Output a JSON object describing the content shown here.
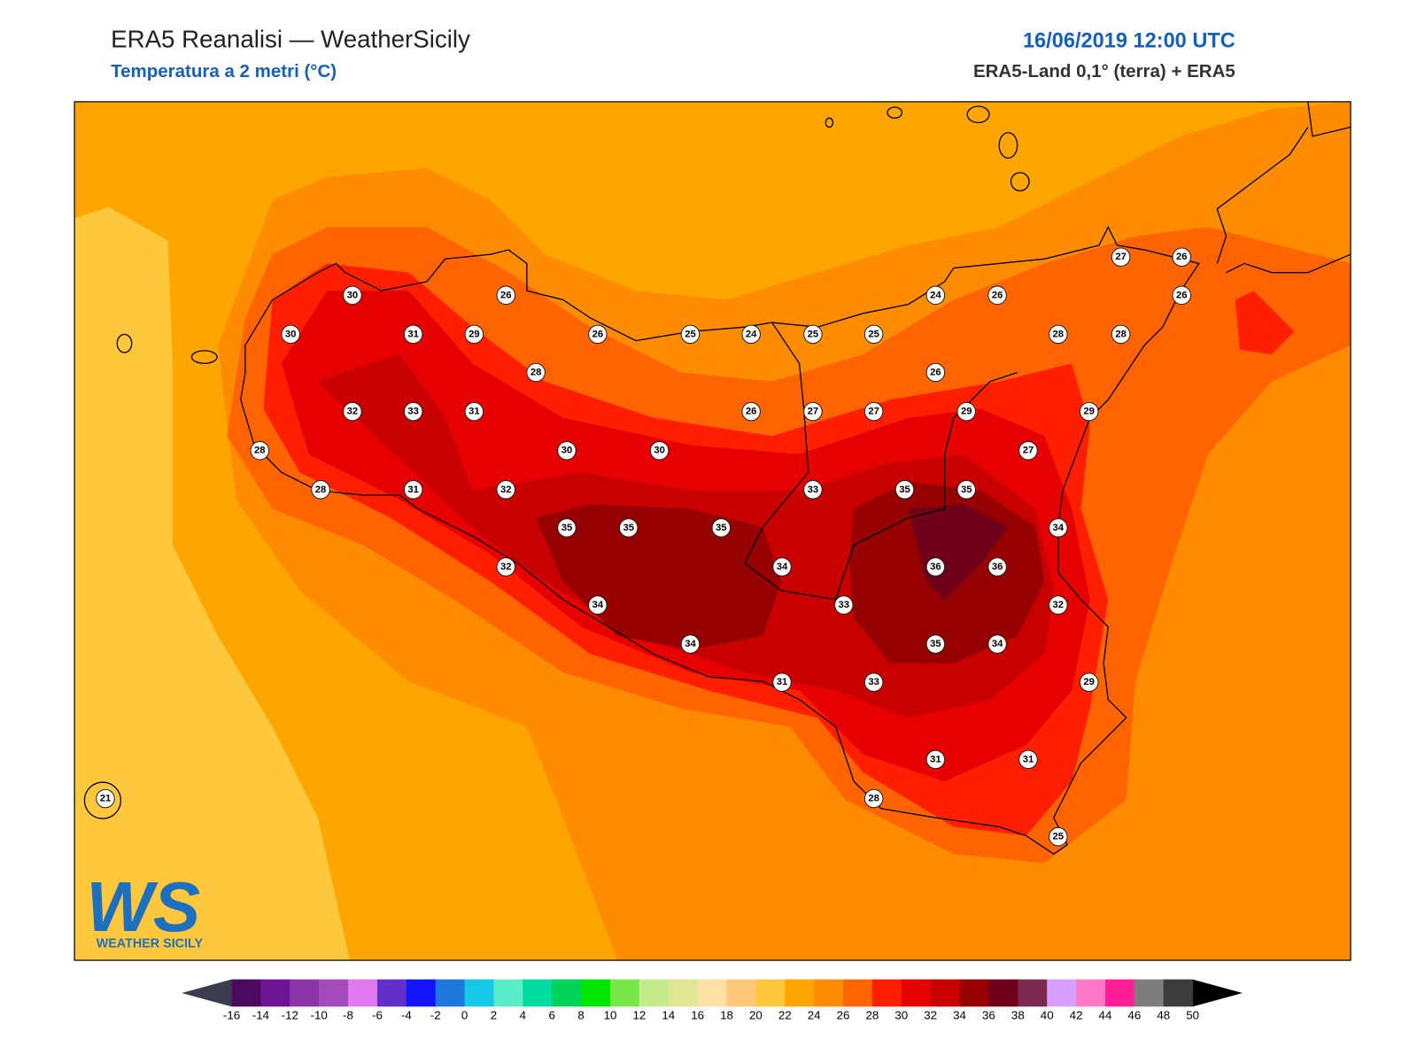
{
  "header": {
    "title": "ERA5 Reanalisi — WeatherSicily",
    "subtitle": "Temperatura a 2 metri (°C)",
    "date": "16/06/2019 12:00 UTC",
    "source": "ERA5-Land 0,1° (terra) + ERA5"
  },
  "stations": [
    27,
    26,
    24,
    26,
    26,
    30,
    26,
    30,
    31,
    29,
    26,
    25,
    24,
    25,
    25,
    28,
    28,
    28,
    26,
    32,
    33,
    31,
    26,
    27,
    27,
    29,
    29,
    28,
    30,
    30,
    27,
    28,
    31,
    32,
    33,
    35,
    35,
    35,
    35,
    35,
    34,
    32,
    34,
    36,
    36,
    34,
    33,
    32,
    34,
    35,
    34,
    31,
    33,
    29,
    31,
    31,
    28,
    21,
    25
  ],
  "colorbar": {
    "ticks": [
      -16,
      -14,
      -12,
      -10,
      -8,
      -6,
      -4,
      -2,
      0,
      2,
      4,
      6,
      8,
      10,
      12,
      14,
      16,
      18,
      20,
      22,
      24,
      26,
      28,
      30,
      32,
      34,
      36,
      38,
      40,
      42,
      44,
      46,
      48,
      50
    ],
    "colors": [
      "#4b0a5e",
      "#6e1596",
      "#8b35a8",
      "#a44bbb",
      "#e07aee",
      "#6230c8",
      "#1414ff",
      "#1e78dc",
      "#14c8e6",
      "#5aebc8",
      "#00dca0",
      "#00d25a",
      "#00e600",
      "#78e646",
      "#c3eb8c",
      "#e1e696",
      "#ffe1a5",
      "#ffc878",
      "#ffc83c",
      "#ffa500",
      "#ff8c00",
      "#ff6400",
      "#ff1e00",
      "#e60000",
      "#c80000",
      "#960000",
      "#6e0019",
      "#7d2850",
      "#d7a0ff",
      "#ff78c8",
      "#ff1e96",
      "#7d7d7d",
      "#3c3c3c"
    ],
    "under_color": "#3c3c50",
    "over_color": "#000000"
  },
  "logo": {
    "mark": "WS",
    "name": "WEATHER SICILY"
  }
}
